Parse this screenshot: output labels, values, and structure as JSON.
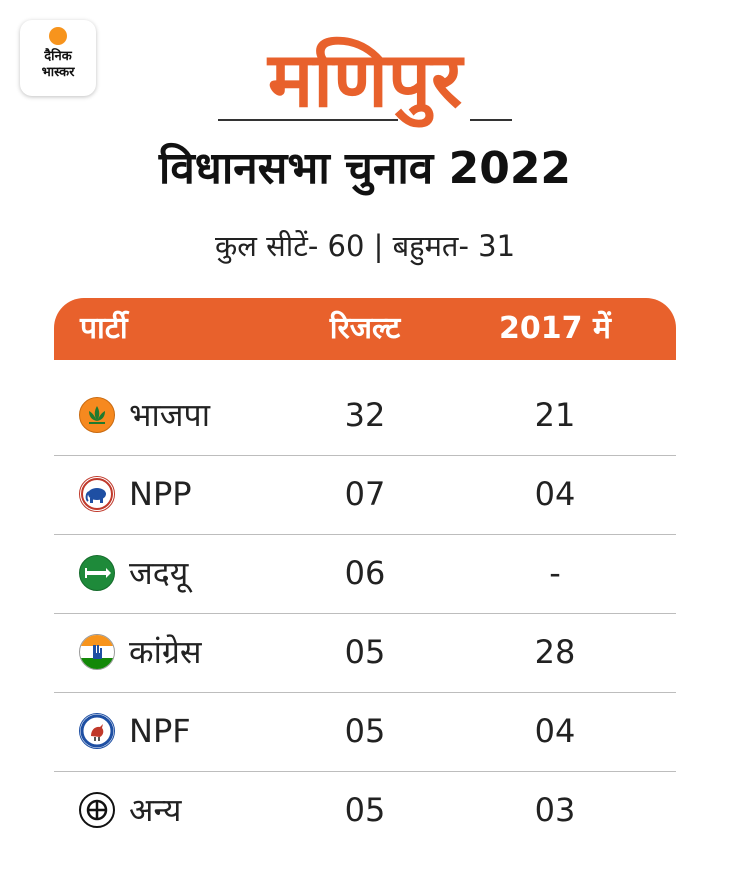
{
  "brand": {
    "line1": "दैनिक",
    "line2": "भास्कर",
    "accent": "#f7941d"
  },
  "title": "मणिपुर",
  "subtitle": "विधानसभा चुनाव 2022",
  "info": "कुल सीटें- 60 | बहुमत- 31",
  "accent_color": "#e8612c",
  "table": {
    "headers": {
      "party": "पार्टी",
      "result": "रिजल्ट",
      "prev": "2017 में"
    },
    "rows": [
      {
        "icon": "bjp-lotus-icon",
        "party": "भाजपा",
        "result": "32",
        "prev": "21"
      },
      {
        "icon": "npp-elephant-icon",
        "party": "NPP",
        "result": "07",
        "prev": "04"
      },
      {
        "icon": "jdu-arrow-icon",
        "party": "जदयू",
        "result": "06",
        "prev": "-"
      },
      {
        "icon": "congress-hand-icon",
        "party": "कांग्रेस",
        "result": "05",
        "prev": "28"
      },
      {
        "icon": "npf-rooster-icon",
        "party": "NPF",
        "result": "05",
        "prev": "04"
      },
      {
        "icon": "others-ballot-icon",
        "party": "अन्य",
        "result": "05",
        "prev": "03"
      }
    ]
  }
}
